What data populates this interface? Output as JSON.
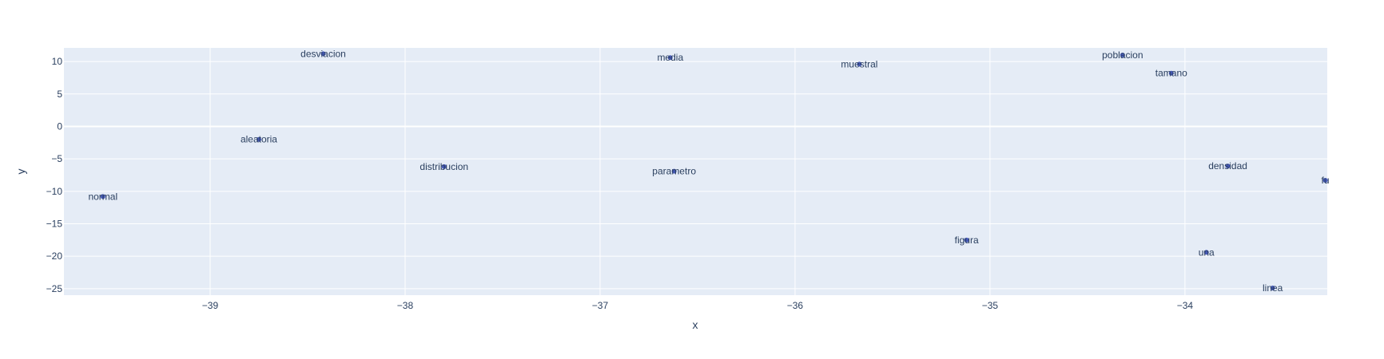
{
  "chart_data": {
    "type": "scatter",
    "xlabel": "x",
    "ylabel": "y",
    "xlim": [
      -39.75,
      -33.27
    ],
    "ylim": [
      -26.0,
      12.1
    ],
    "xticks": [
      -39,
      -38,
      -37,
      -36,
      -35,
      -34
    ],
    "yticks": [
      10,
      5,
      0,
      -5,
      -10,
      -15,
      -20,
      -25
    ],
    "xtick_labels": [
      "−39",
      "−38",
      "−37",
      "−36",
      "−35",
      "−34"
    ],
    "ytick_labels": [
      "10",
      "5",
      "0",
      "−5",
      "−10",
      "−15",
      "−20",
      "−25"
    ],
    "grid": true,
    "marker_color": "#4659b8",
    "plot_bg": "#e5ecf6",
    "grid_color": "#ffffff",
    "text_color": "#2a3f5f",
    "points": [
      {
        "x": -38.42,
        "y": 11.2,
        "label": "desviacion"
      },
      {
        "x": -36.64,
        "y": 10.6,
        "label": "media"
      },
      {
        "x": -35.67,
        "y": 9.6,
        "label": "muestral"
      },
      {
        "x": -34.32,
        "y": 11.0,
        "label": "poblacion"
      },
      {
        "x": -34.07,
        "y": 8.2,
        "label": "tamano"
      },
      {
        "x": -38.75,
        "y": -2.0,
        "label": "aleatoria"
      },
      {
        "x": -37.8,
        "y": -6.2,
        "label": "distribucion"
      },
      {
        "x": -36.62,
        "y": -6.9,
        "label": "parametro"
      },
      {
        "x": -33.78,
        "y": -6.1,
        "label": "densidad"
      },
      {
        "x": -33.28,
        "y": -8.3,
        "label": "fu"
      },
      {
        "x": -39.55,
        "y": -10.8,
        "label": "normal"
      },
      {
        "x": -35.12,
        "y": -17.5,
        "label": "figura"
      },
      {
        "x": -33.89,
        "y": -19.4,
        "label": "una"
      },
      {
        "x": -33.55,
        "y": -24.9,
        "label": "linea"
      }
    ]
  }
}
